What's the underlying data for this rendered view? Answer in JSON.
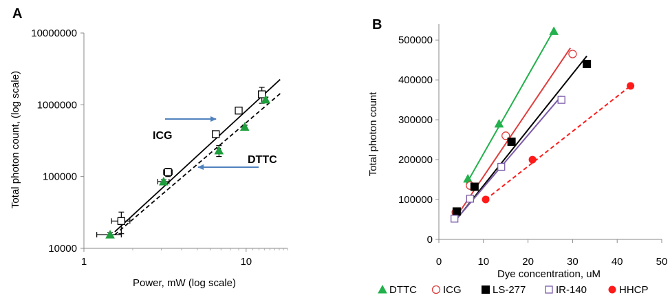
{
  "chart_data": [
    {
      "panel_label": "A",
      "type": "scatter",
      "xlabel": "Power, mW (log scale)",
      "ylabel": "Total photon count, (log scale)",
      "xscale": "log",
      "yscale": "log",
      "xlim": [
        1,
        18
      ],
      "ylim": [
        10000,
        10000000
      ],
      "x_ticks": [
        {
          "value": 1,
          "label": "1"
        },
        {
          "value": 10,
          "label": "10"
        }
      ],
      "y_ticks": [
        {
          "value": 10000,
          "label": "10000"
        },
        {
          "value": 100000,
          "label": "100000"
        },
        {
          "value": 1000000,
          "label": "1000000"
        },
        {
          "value": 10000000,
          "label": "10000000"
        }
      ],
      "series": [
        {
          "name": "ICG",
          "marker": "open-square",
          "color": "#000000",
          "points": [
            {
              "x": 1.7,
              "y": 24000,
              "xerr": 0.22,
              "yerr": 8000
            },
            {
              "x": 3.3,
              "y": 115000,
              "xerr": 0.2,
              "yerr": 15000
            },
            {
              "x": 6.5,
              "y": 390000,
              "xerr": 0.15,
              "yerr": 40000
            },
            {
              "x": 9.0,
              "y": 830000,
              "xerr": 0.2,
              "yerr": 50000
            },
            {
              "x": 12.5,
              "y": 1400000,
              "xerr": 0.3,
              "yerr": 350000
            }
          ],
          "fit": {
            "style": "solid",
            "x": [
              1.55,
              16.2
            ],
            "y": [
              17000,
              2250000
            ]
          }
        },
        {
          "name": "DTTC",
          "marker": "filled-triangle",
          "color": "#1e9e3c",
          "points": [
            {
              "x": 1.45,
              "y": 15500,
              "xerr": 0.25,
              "yerr": 1000
            },
            {
              "x": 3.1,
              "y": 85000,
              "xerr": 0.25,
              "yerr": 5000
            },
            {
              "x": 6.8,
              "y": 230000,
              "xerr": 0.15,
              "yerr": 40000
            },
            {
              "x": 9.8,
              "y": 490000,
              "xerr": 0.1,
              "yerr": 30000
            },
            {
              "x": 13.2,
              "y": 1180000,
              "xerr": 0.3,
              "yerr": 100000
            }
          ],
          "fit": {
            "style": "dashed",
            "x": [
              1.55,
              16.5
            ],
            "y": [
              15500,
              1480000
            ]
          }
        }
      ],
      "annotations": [
        {
          "text": "ICG",
          "arrow": "right",
          "color": "#4f81bd"
        },
        {
          "text": "DTTC",
          "arrow": "left",
          "color": "#4f81bd"
        }
      ]
    },
    {
      "panel_label": "B",
      "type": "scatter",
      "xlabel": "Dye concentration, uM",
      "ylabel": "Total photon count",
      "xlim": [
        0,
        50
      ],
      "ylim": [
        0,
        540000
      ],
      "x_ticks": [
        {
          "value": 0,
          "label": "0"
        },
        {
          "value": 10,
          "label": "10"
        },
        {
          "value": 20,
          "label": "20"
        },
        {
          "value": 30,
          "label": "30"
        },
        {
          "value": 40,
          "label": "40"
        },
        {
          "value": 50,
          "label": "50"
        }
      ],
      "y_ticks": [
        {
          "value": 0,
          "label": "0"
        },
        {
          "value": 100000,
          "label": "100000"
        },
        {
          "value": 200000,
          "label": "200000"
        },
        {
          "value": 300000,
          "label": "300000"
        },
        {
          "value": 400000,
          "label": "400000"
        },
        {
          "value": 500000,
          "label": "500000"
        }
      ],
      "legend_position": "bottom",
      "series": [
        {
          "name": "DTTC",
          "marker": "filled-triangle",
          "color": "#22b14c",
          "x": [
            6.5,
            13.5,
            25.8
          ],
          "y": [
            152000,
            290000,
            522000
          ],
          "fit": {
            "style": "solid",
            "x": [
              6.2,
              25.8
            ],
            "y": [
              140000,
              525000
            ]
          }
        },
        {
          "name": "ICG",
          "marker": "open-circle",
          "color": "#e03c3c",
          "x": [
            3.8,
            7.0,
            15.0,
            30.0
          ],
          "y": [
            68000,
            135000,
            260000,
            465000
          ],
          "fit": {
            "style": "solid",
            "x": [
              3.8,
              29.5
            ],
            "y": [
              55000,
              480000
            ]
          }
        },
        {
          "name": "LS-277",
          "marker": "filled-square",
          "color": "#000000",
          "x": [
            4.0,
            8.0,
            16.3,
            33.2
          ],
          "y": [
            70000,
            132000,
            245000,
            440000
          ],
          "fit": {
            "style": "solid",
            "x": [
              3.8,
              33.2
            ],
            "y": [
              48000,
              460000
            ]
          }
        },
        {
          "name": "IR-140",
          "marker": "open-square",
          "color": "#7b5ba8",
          "x": [
            3.5,
            7.0,
            14.0,
            27.5
          ],
          "y": [
            52000,
            102000,
            182000,
            350000
          ],
          "fit": {
            "style": "solid",
            "x": [
              3.5,
              27.5
            ],
            "y": [
              45000,
              360000
            ]
          }
        },
        {
          "name": "HHCP",
          "marker": "filled-circle",
          "color": "#ff1a1a",
          "x": [
            10.5,
            21.0,
            43.0
          ],
          "y": [
            100000,
            200000,
            385000
          ],
          "fit": {
            "style": "dashed",
            "x": [
              10.5,
              43.0
            ],
            "y": [
              100000,
              385000
            ]
          }
        }
      ]
    }
  ]
}
